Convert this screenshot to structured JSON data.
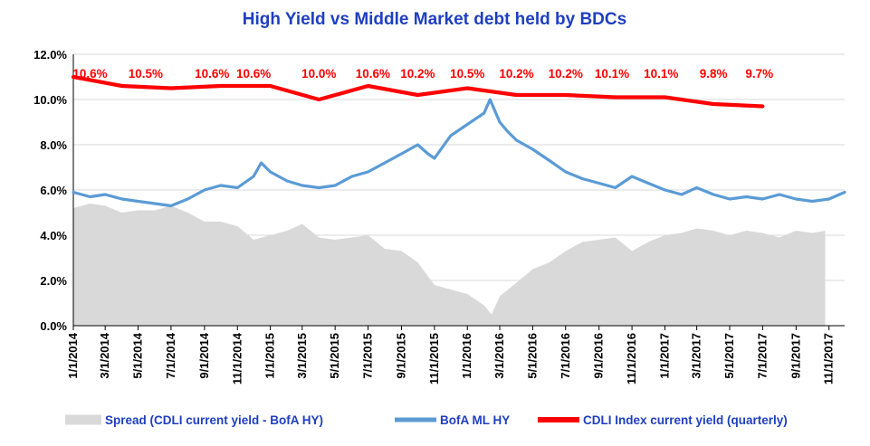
{
  "chart_data": {
    "type": "line",
    "title": "High Yield  vs  Middle Market debt held by BDCs",
    "ylim": [
      0,
      12
    ],
    "yticks": [
      "0.0%",
      "2.0%",
      "4.0%",
      "6.0%",
      "8.0%",
      "10.0%",
      "12.0%"
    ],
    "x_tick_labels": [
      "1/1/2014",
      "3/1/2014",
      "5/1/2014",
      "7/1/2014",
      "9/1/2014",
      "11/1/2014",
      "1/1/2015",
      "3/1/2015",
      "5/1/2015",
      "7/1/2015",
      "9/1/2015",
      "11/1/2015",
      "1/1/2016",
      "3/1/2016",
      "5/1/2016",
      "7/1/2016",
      "9/1/2016",
      "11/1/2016",
      "1/1/2017",
      "3/1/2017",
      "5/1/2017",
      "7/1/2017",
      "9/1/2017",
      "11/1/2017"
    ],
    "x_range": [
      "1/1/2014",
      "11/30/2017"
    ],
    "legend_position": "bottom",
    "series": [
      {
        "name": "Spread (CDLI current yield - BofA HY)",
        "kind": "area",
        "color": "#d9d9d9",
        "x": [
          "1/1/2014",
          "2/1/2014",
          "3/1/2014",
          "4/1/2014",
          "5/1/2014",
          "6/1/2014",
          "7/1/2014",
          "8/1/2014",
          "9/1/2014",
          "10/1/2014",
          "11/1/2014",
          "12/1/2014",
          "1/1/2015",
          "2/1/2015",
          "3/1/2015",
          "4/1/2015",
          "5/1/2015",
          "6/1/2015",
          "7/1/2015",
          "8/1/2015",
          "9/1/2015",
          "10/1/2015",
          "11/1/2015",
          "12/1/2015",
          "1/1/2016",
          "2/1/2016",
          "2/15/2016",
          "3/1/2016",
          "4/1/2016",
          "5/1/2016",
          "6/1/2016",
          "7/1/2016",
          "8/1/2016",
          "9/1/2016",
          "10/1/2016",
          "11/1/2016",
          "12/1/2016",
          "1/1/2017",
          "2/1/2017",
          "3/1/2017",
          "4/1/2017",
          "5/1/2017",
          "6/1/2017",
          "7/1/2017",
          "8/1/2017",
          "9/1/2017",
          "10/1/2017",
          "10/25/2017"
        ],
        "values": [
          5.2,
          5.4,
          5.3,
          5.0,
          5.1,
          5.1,
          5.3,
          5.0,
          4.6,
          4.6,
          4.4,
          3.8,
          4.0,
          4.2,
          4.5,
          3.9,
          3.8,
          3.9,
          4.0,
          3.4,
          3.3,
          2.8,
          1.8,
          1.6,
          1.4,
          0.9,
          0.5,
          1.3,
          1.9,
          2.5,
          2.8,
          3.3,
          3.7,
          3.8,
          3.9,
          3.3,
          3.7,
          4.0,
          4.1,
          4.3,
          4.2,
          4.0,
          4.2,
          4.1,
          3.9,
          4.2,
          4.1,
          4.2
        ]
      },
      {
        "name": "BofA ML HY",
        "kind": "line",
        "color": "#5b9bd5",
        "x": [
          "1/1/2014",
          "2/1/2014",
          "3/1/2014",
          "4/1/2014",
          "5/1/2014",
          "6/1/2014",
          "7/1/2014",
          "8/1/2014",
          "9/1/2014",
          "10/1/2014",
          "11/1/2014",
          "12/1/2014",
          "12/15/2014",
          "1/1/2015",
          "2/1/2015",
          "3/1/2015",
          "4/1/2015",
          "5/1/2015",
          "6/1/2015",
          "7/1/2015",
          "8/1/2015",
          "9/1/2015",
          "10/1/2015",
          "10/20/2015",
          "11/1/2015",
          "12/1/2015",
          "1/1/2016",
          "2/1/2016",
          "2/12/2016",
          "3/1/2016",
          "3/15/2016",
          "4/1/2016",
          "5/1/2016",
          "6/1/2016",
          "7/1/2016",
          "8/1/2016",
          "9/1/2016",
          "10/1/2016",
          "11/1/2016",
          "12/1/2016",
          "1/1/2017",
          "2/1/2017",
          "3/1/2017",
          "4/1/2017",
          "5/1/2017",
          "6/1/2017",
          "7/1/2017",
          "8/1/2017",
          "9/1/2017",
          "10/1/2017",
          "11/1/2017",
          "11/30/2017"
        ],
        "values": [
          5.9,
          5.7,
          5.8,
          5.6,
          5.5,
          5.4,
          5.3,
          5.6,
          6.0,
          6.2,
          6.1,
          6.6,
          7.2,
          6.8,
          6.4,
          6.2,
          6.1,
          6.2,
          6.6,
          6.8,
          7.2,
          7.6,
          8.0,
          7.6,
          7.4,
          8.4,
          8.9,
          9.4,
          10.0,
          9.0,
          8.6,
          8.2,
          7.8,
          7.3,
          6.8,
          6.5,
          6.3,
          6.1,
          6.6,
          6.3,
          6.0,
          5.8,
          6.1,
          5.8,
          5.6,
          5.7,
          5.6,
          5.8,
          5.6,
          5.5,
          5.6,
          5.9
        ]
      },
      {
        "name": "CDLI Index current yield (quarterly)",
        "kind": "line",
        "color": "#ff0000",
        "x": [
          "1/1/2014",
          "4/1/2014",
          "7/1/2014",
          "10/1/2014",
          "1/1/2015",
          "4/1/2015",
          "7/1/2015",
          "10/1/2015",
          "1/1/2016",
          "4/1/2016",
          "7/1/2016",
          "10/1/2016",
          "1/1/2017",
          "4/1/2017",
          "7/1/2017"
        ],
        "values": [
          11.0,
          10.6,
          10.5,
          10.6,
          10.6,
          10.0,
          10.6,
          10.2,
          10.5,
          10.2,
          10.2,
          10.1,
          10.1,
          9.8,
          9.7
        ],
        "data_labels": [
          {
            "x": "2/1/2014",
            "text": "10.6%"
          },
          {
            "x": "5/15/2014",
            "text": "10.5%"
          },
          {
            "x": "9/15/2014",
            "text": "10.6%"
          },
          {
            "x": "12/1/2014",
            "text": "10.6%"
          },
          {
            "x": "4/1/2015",
            "text": "10.0%"
          },
          {
            "x": "7/10/2015",
            "text": "10.6%"
          },
          {
            "x": "10/1/2015",
            "text": "10.2%"
          },
          {
            "x": "1/1/2016",
            "text": "10.5%"
          },
          {
            "x": "4/1/2016",
            "text": "10.2%"
          },
          {
            "x": "7/1/2016",
            "text": "10.2%"
          },
          {
            "x": "9/25/2016",
            "text": "10.1%"
          },
          {
            "x": "12/25/2016",
            "text": "10.1%"
          },
          {
            "x": "4/1/2017",
            "text": "9.8%"
          },
          {
            "x": "6/25/2017",
            "text": "9.7%"
          }
        ]
      }
    ]
  }
}
